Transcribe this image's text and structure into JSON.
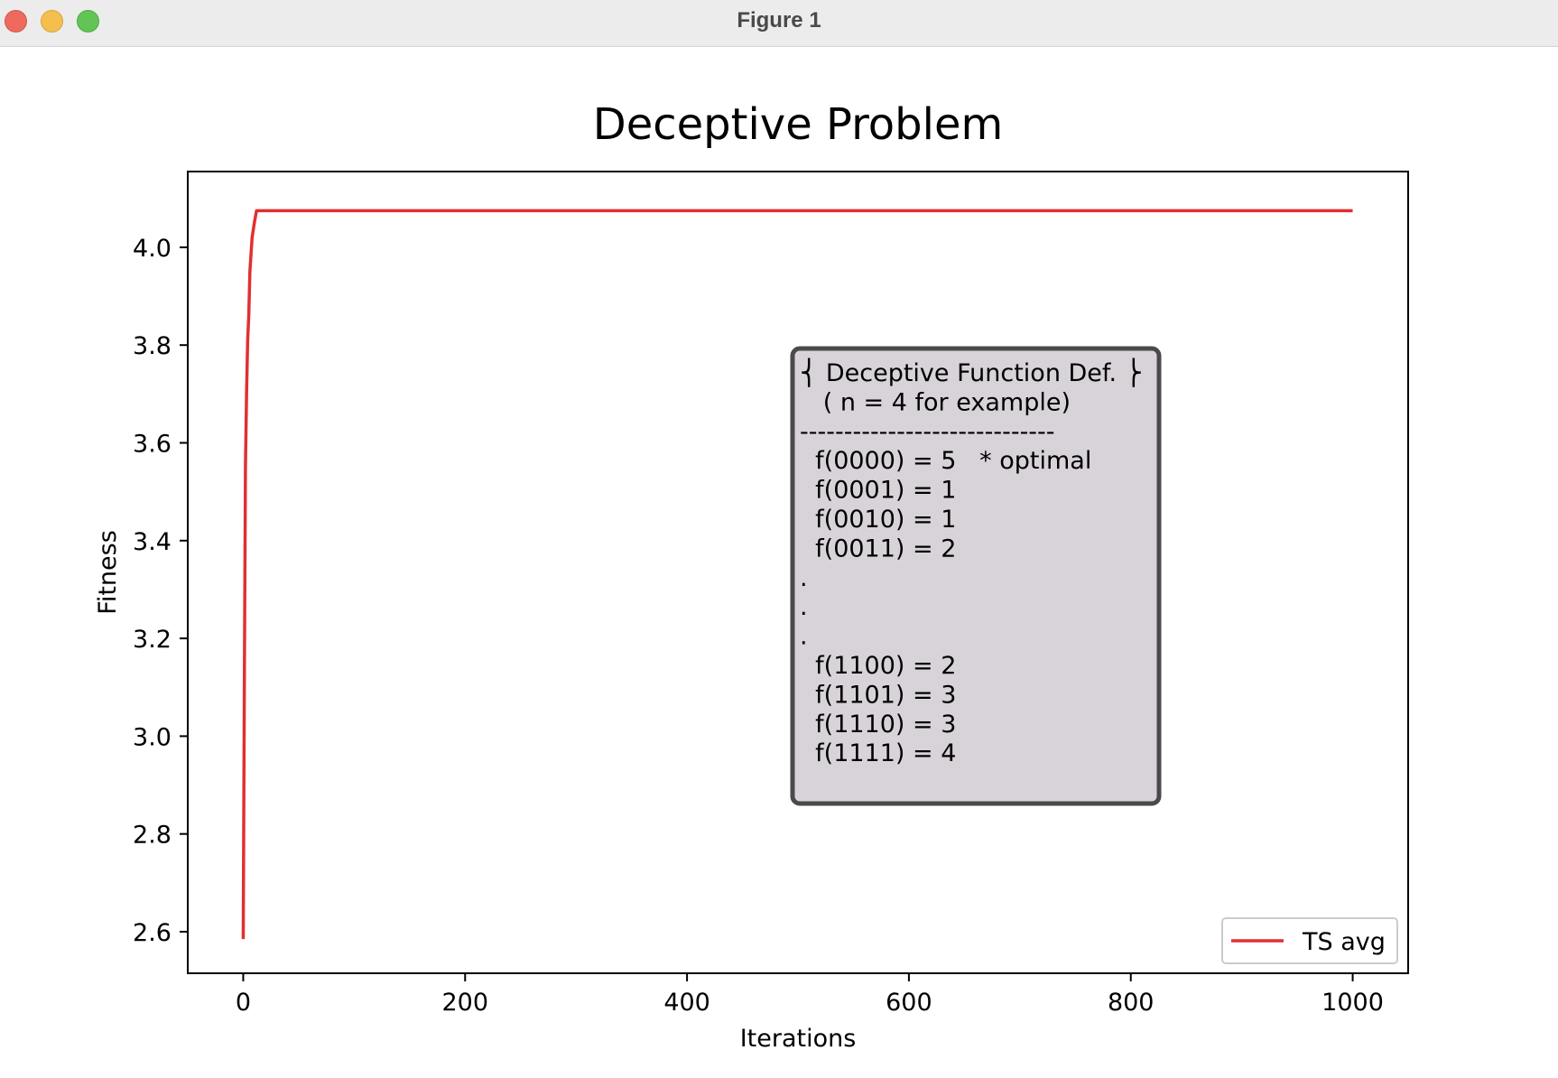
{
  "window": {
    "title": "Figure 1"
  },
  "chart_data": {
    "type": "line",
    "title": "Deceptive Problem",
    "xlabel": "Iterations",
    "ylabel": "Fitness",
    "xlim": [
      -50,
      1050
    ],
    "ylim": [
      2.515,
      4.155
    ],
    "xticks": [
      0,
      200,
      400,
      600,
      800,
      1000
    ],
    "xtick_labels": [
      "0",
      "200",
      "400",
      "600",
      "800",
      "1000"
    ],
    "yticks": [
      2.6,
      2.8,
      3.0,
      3.2,
      3.4,
      3.6,
      3.8,
      4.0
    ],
    "ytick_labels": [
      "2.6",
      "2.8",
      "3.0",
      "3.2",
      "3.4",
      "3.6",
      "3.8",
      "4.0"
    ],
    "grid": false,
    "legend_position": "lower right",
    "series": [
      {
        "name": "TS avg",
        "color": "#e03030",
        "x": [
          0,
          1,
          2,
          3,
          4,
          5,
          6,
          8,
          10,
          12,
          20,
          100,
          200,
          400,
          600,
          800,
          1000
        ],
        "y": [
          2.585,
          3.1,
          3.55,
          3.7,
          3.81,
          3.86,
          3.95,
          4.02,
          4.05,
          4.075,
          4.075,
          4.075,
          4.075,
          4.075,
          4.075,
          4.075,
          4.075
        ]
      }
    ],
    "annotation": {
      "lines": [
        "⎨ Deceptive Function Def. ⎬",
        "   ( n = 4 for example)",
        "-----------------------------",
        "  f(0000) = 5   * optimal",
        "  f(0001) = 1",
        "  f(0010) = 1",
        "  f(0011) = 2",
        ".",
        ".",
        ".",
        "  f(1100) = 2",
        "  f(1101) = 3",
        "  f(1110) = 3",
        "  f(1111) = 4"
      ],
      "box_color": "#d8d3d9",
      "border_color": "#4a4a4a"
    }
  }
}
